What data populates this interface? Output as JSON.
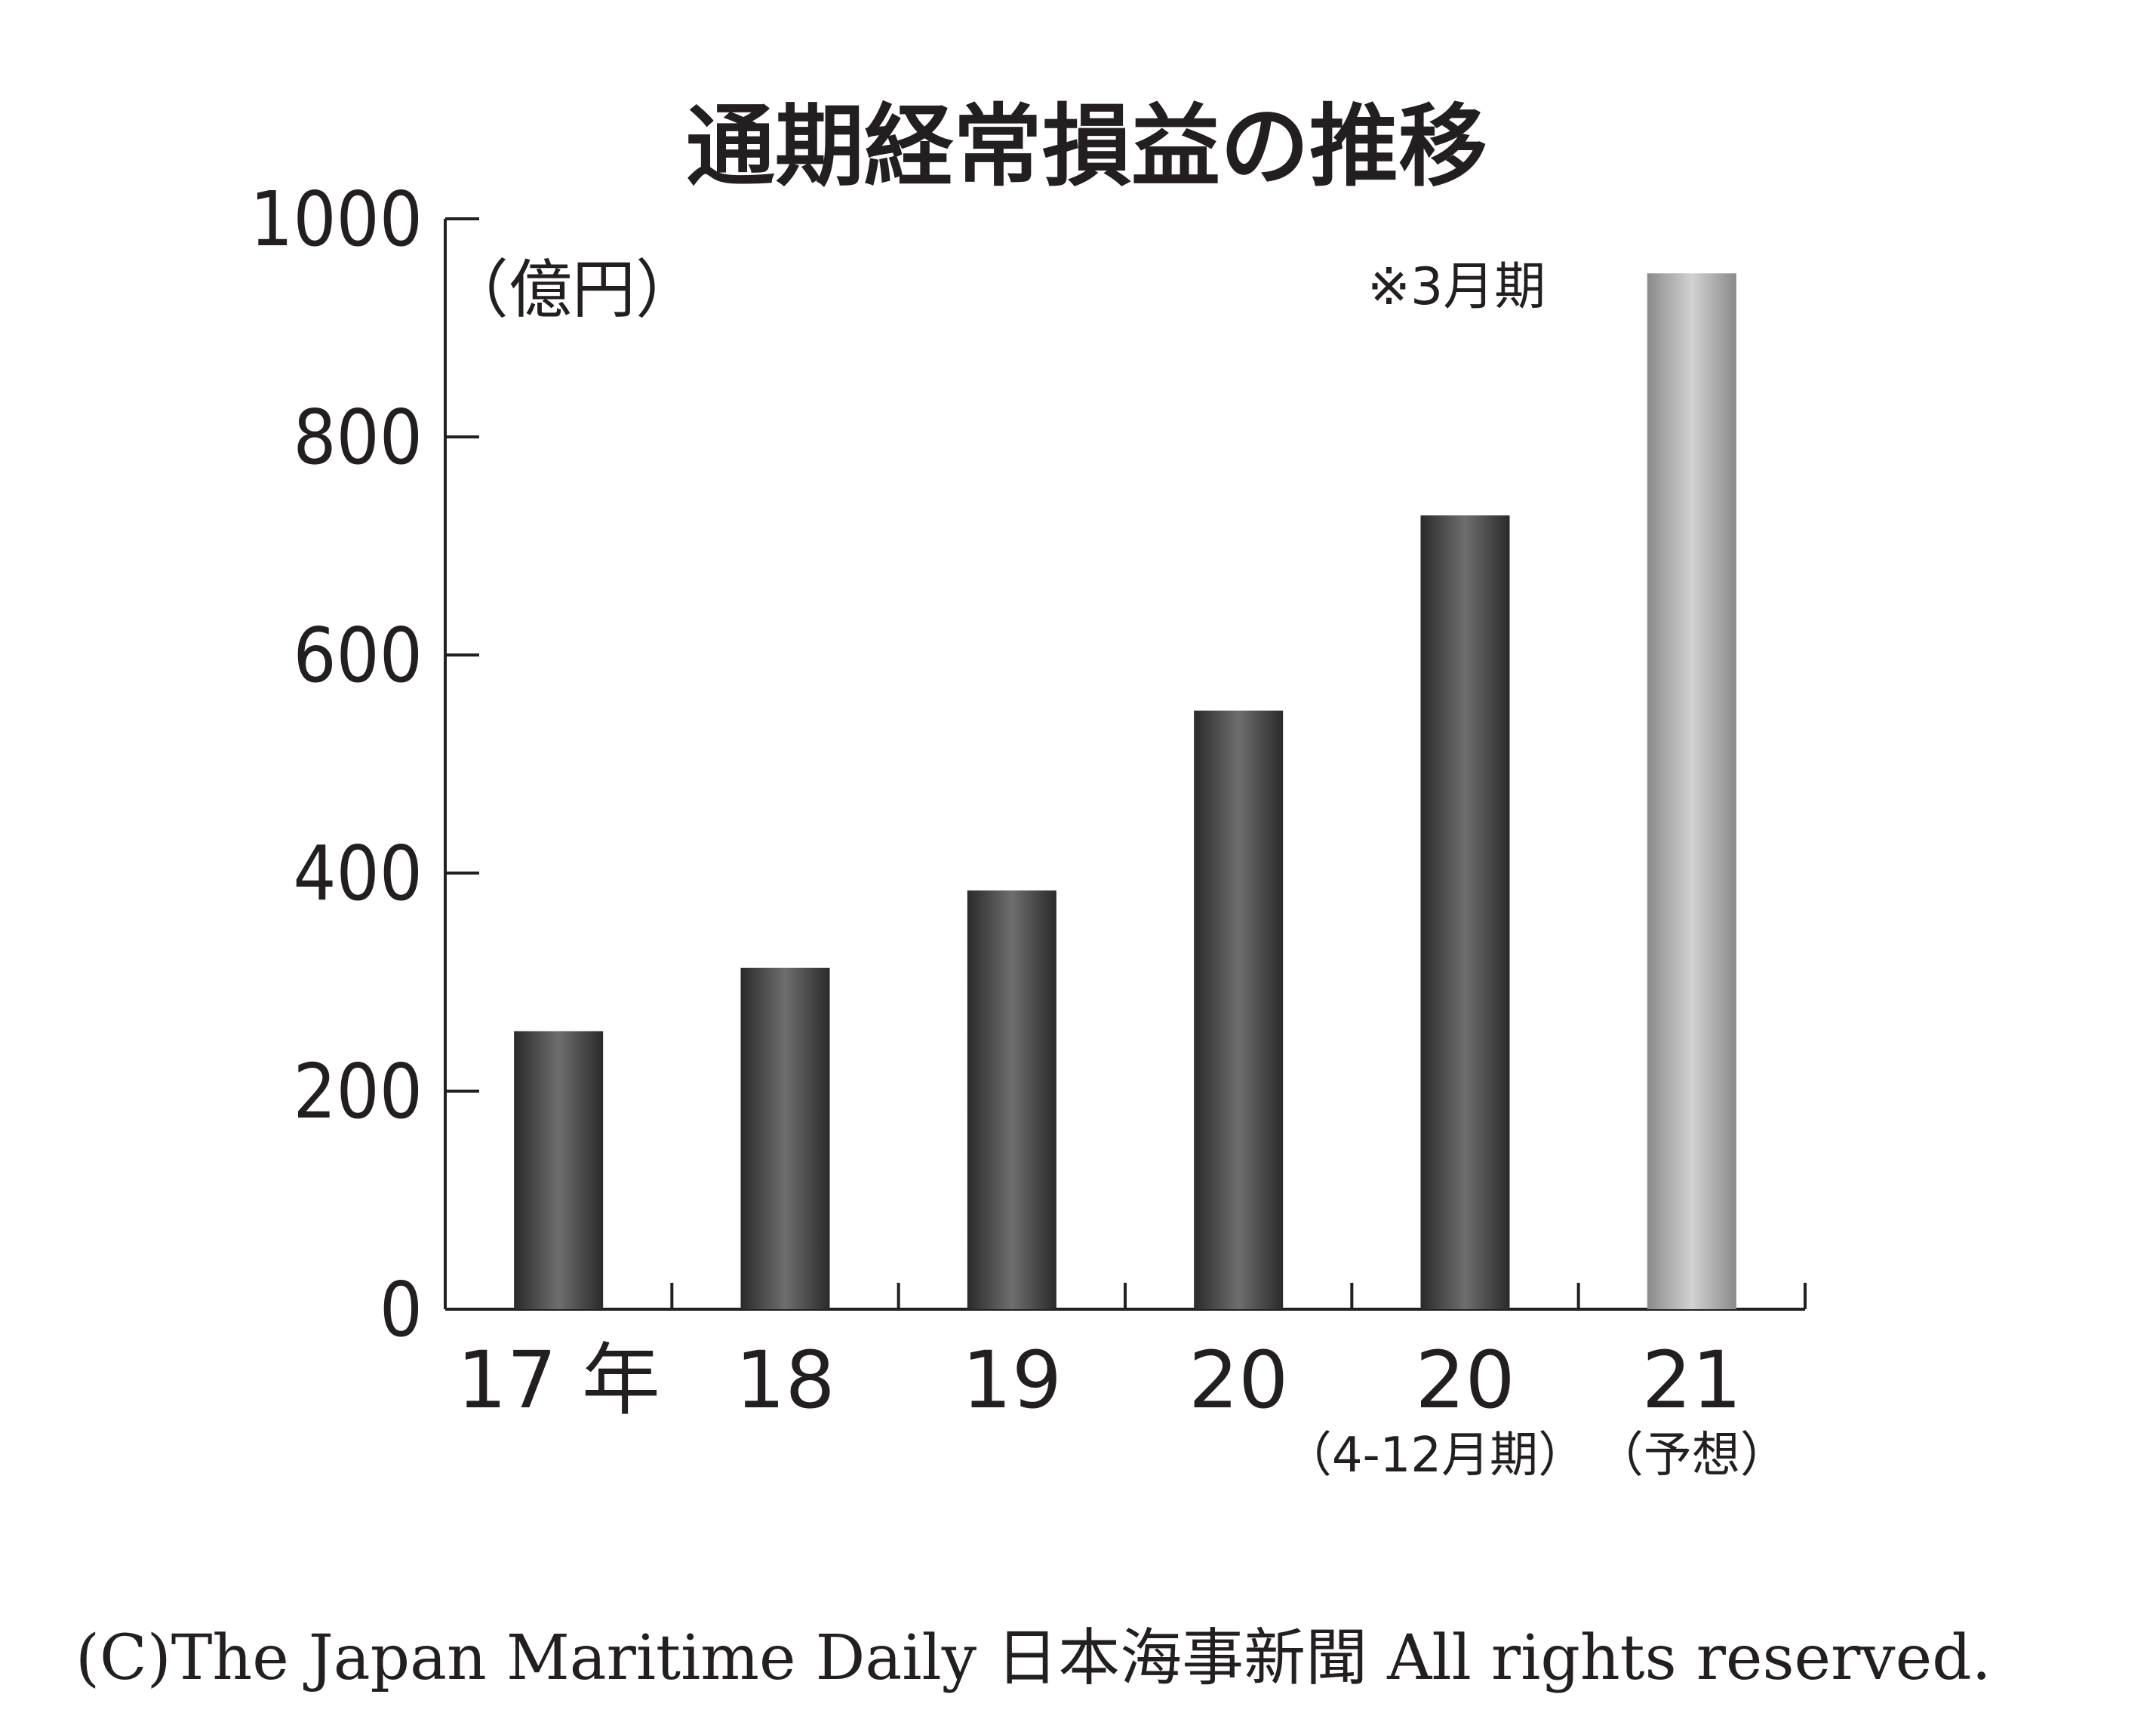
{
  "chart_data": {
    "type": "bar",
    "title": "通期経常損益の推移",
    "unit_label": "（億円）",
    "note": "※3月期",
    "categories": [
      "17 年",
      "18",
      "19",
      "20",
      "20",
      "21"
    ],
    "category_sublabels": [
      "",
      "",
      "",
      "",
      "（4-12月期）",
      "（予想）"
    ],
    "values": [
      255,
      313,
      384,
      549,
      728,
      950
    ],
    "forecast": [
      false,
      false,
      false,
      false,
      false,
      true
    ],
    "ylim": [
      0,
      1000
    ],
    "yticks": [
      0,
      200,
      400,
      600,
      800,
      1000
    ],
    "grid": false,
    "colors": {
      "actual_dark": "#2a2a2a",
      "actual_light": "#6e6e6e",
      "forecast_dark": "#8a8a8a",
      "forecast_light": "#d2d2d2",
      "axis": "#231f20"
    }
  },
  "footer": "(C)The Japan Maritime Daily 日本海事新聞 All rights reserved."
}
